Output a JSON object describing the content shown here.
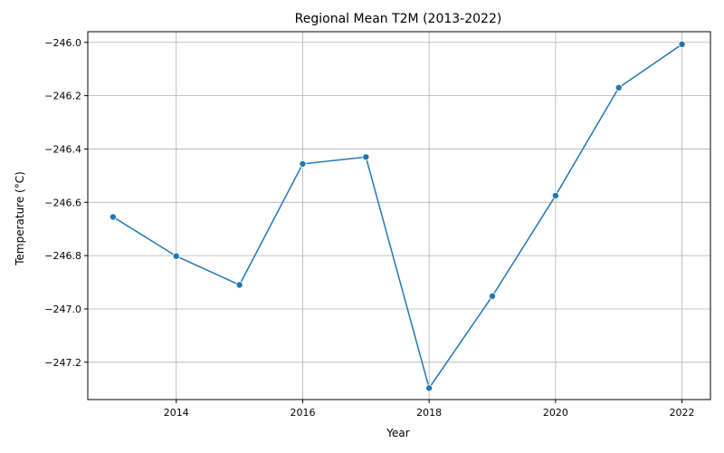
{
  "chart_data": {
    "type": "line",
    "title": "Regional Mean T2M (2013-2022)",
    "xlabel": "Year",
    "ylabel": "Temperature (°C)",
    "x": [
      2013,
      2014,
      2015,
      2016,
      2017,
      2018,
      2019,
      2020,
      2021,
      2022
    ],
    "series": [
      {
        "values": [
          -246.655,
          -246.802,
          -246.91,
          -246.456,
          -246.43,
          -247.297,
          -246.952,
          -246.575,
          -246.17,
          -246.007
        ]
      }
    ],
    "xlim": [
      2012.6,
      2022.45
    ],
    "ylim": [
      -247.34,
      -245.96
    ],
    "xticks": [
      2014,
      2016,
      2018,
      2020,
      2022
    ],
    "xtick_labels": [
      "2014",
      "2016",
      "2018",
      "2020",
      "2022"
    ],
    "yticks": [
      -247.2,
      -247.0,
      -246.8,
      -246.6,
      -246.4,
      -246.2,
      -246.0
    ],
    "ytick_labels": [
      "−247.2",
      "−247.0",
      "−246.8",
      "−246.6",
      "−246.4",
      "−246.2",
      "−246.0"
    ],
    "grid": true,
    "colors": {
      "line": "#1f77b4",
      "grid": "#b0b0b0",
      "axis": "#000000"
    }
  }
}
